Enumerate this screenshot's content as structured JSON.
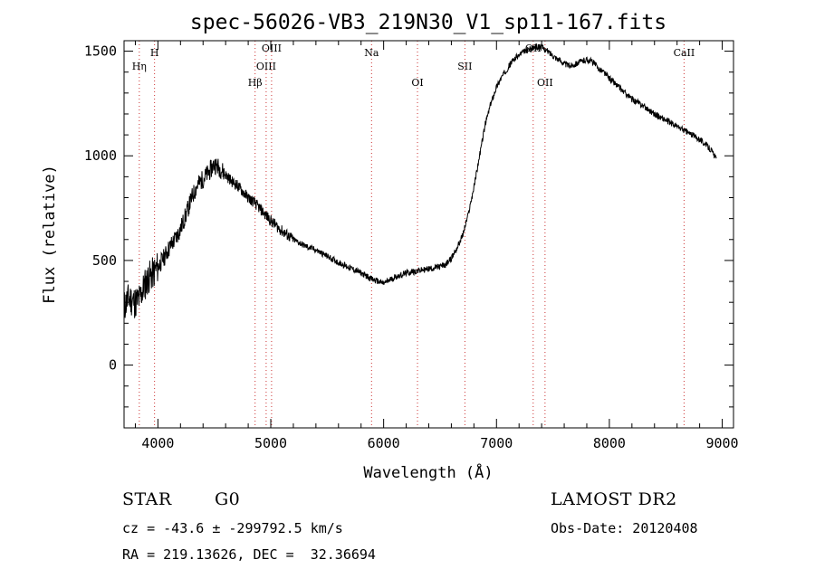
{
  "chart_data": {
    "type": "line",
    "title": "spec-56026-VB3_219N30_V1_sp11-167.fits",
    "xlabel": "Wavelength (Å)",
    "ylabel": "Flux (relative)",
    "xlim": [
      3700,
      9100
    ],
    "ylim": [
      -300,
      1550
    ],
    "xticks": [
      4000,
      5000,
      6000,
      7000,
      8000,
      9000
    ],
    "yticks": [
      0,
      500,
      1000,
      1500
    ],
    "grid": false,
    "line_color": "#000000",
    "marker_color": "#cc3333",
    "markers": [
      {
        "label": "Hη",
        "x": 3835,
        "row": 2
      },
      {
        "label": "H",
        "x": 3970,
        "row": 1
      },
      {
        "label": "Hβ",
        "x": 4861,
        "row": 3
      },
      {
        "label": "OIII",
        "x": 4959,
        "row": 2
      },
      {
        "label": "OIII",
        "x": 5007,
        "row": 0
      },
      {
        "label": "Na",
        "x": 5893,
        "row": 1
      },
      {
        "label": "OI",
        "x": 6300,
        "row": 3
      },
      {
        "label": "SII",
        "x": 6720,
        "row": 2
      },
      {
        "label": "OII",
        "x": 7325,
        "row": 0
      },
      {
        "label": "OII",
        "x": 7430,
        "row": 3
      },
      {
        "label": "CaII",
        "x": 8662,
        "row": 1
      }
    ],
    "series": [
      {
        "x": [
          3700,
          3720,
          3745,
          3770,
          3800,
          3840,
          3880,
          3920,
          3960,
          4000,
          4050,
          4100,
          4150,
          4200,
          4250,
          4300,
          4350,
          4400,
          4450,
          4500,
          4550,
          4600,
          4650,
          4700,
          4750,
          4800,
          4850,
          4900,
          4950,
          5000,
          5100,
          5200,
          5300,
          5400,
          5500,
          5600,
          5700,
          5800,
          5900,
          6000,
          6100,
          6200,
          6300,
          6400,
          6500,
          6550,
          6600,
          6650,
          6700,
          6750,
          6800,
          6850,
          6900,
          6950,
          7000,
          7050,
          7100,
          7150,
          7200,
          7250,
          7300,
          7350,
          7400,
          7450,
          7500,
          7550,
          7600,
          7650,
          7700,
          7750,
          7800,
          7850,
          7900,
          7950,
          8000,
          8100,
          8200,
          8300,
          8400,
          8500,
          8600,
          8700,
          8800,
          8900,
          8950
        ],
        "y": [
          280,
          300,
          320,
          310,
          300,
          320,
          380,
          420,
          440,
          470,
          510,
          560,
          600,
          650,
          720,
          800,
          860,
          890,
          920,
          960,
          940,
          910,
          880,
          860,
          830,
          800,
          780,
          750,
          720,
          690,
          640,
          600,
          570,
          550,
          520,
          490,
          465,
          440,
          410,
          390,
          420,
          440,
          450,
          460,
          470,
          480,
          510,
          560,
          620,
          720,
          850,
          1000,
          1150,
          1250,
          1330,
          1380,
          1420,
          1460,
          1480,
          1500,
          1510,
          1520,
          1520,
          1500,
          1480,
          1460,
          1440,
          1430,
          1440,
          1450,
          1460,
          1450,
          1420,
          1400,
          1370,
          1320,
          1270,
          1240,
          1200,
          1170,
          1140,
          1110,
          1080,
          1030,
          980
        ]
      }
    ]
  },
  "info": {
    "object_class": "STAR",
    "subclass": "G0",
    "survey": "LAMOST DR2",
    "cz_line": "cz = -43.6 ± -299792.5 km/s",
    "obs_date": "Obs-Date: 20120408",
    "coords": "RA = 219.13626, DEC =  32.36694"
  }
}
